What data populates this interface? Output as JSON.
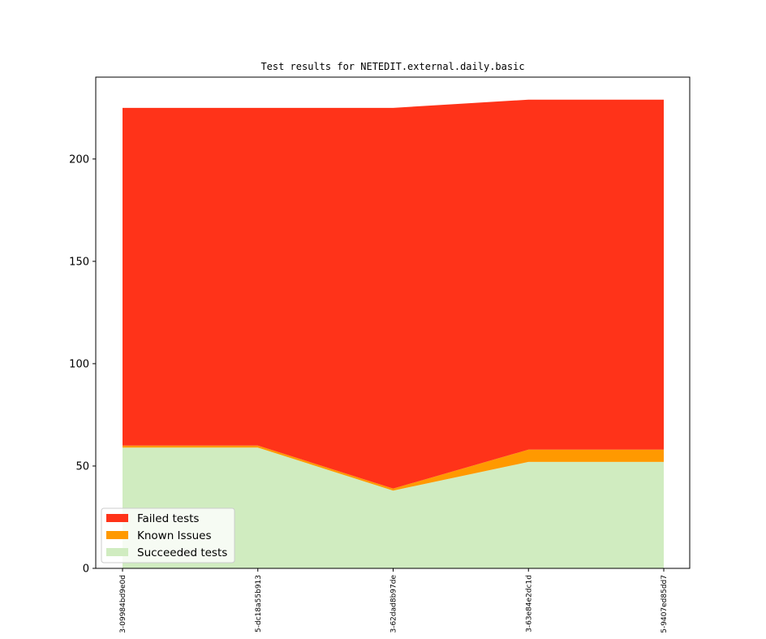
{
  "chart_data": {
    "type": "area",
    "stacked": true,
    "title": "Test results for NETEDIT.external.daily.basic",
    "xlabel": "",
    "ylabel": "",
    "ylim": [
      0,
      240
    ],
    "yticks": [
      0,
      50,
      100,
      150,
      200
    ],
    "categories": [
      "3-09984bd9e0d",
      "5-dc18a55b913",
      "3-62dad8b97de",
      "3-63e84e2dc1d",
      "5-9407ed85dd7"
    ],
    "series": [
      {
        "name": "Succeeded tests",
        "color": "#d0ecc0",
        "values": [
          59,
          59,
          38,
          52,
          52
        ]
      },
      {
        "name": "Known Issues",
        "color": "#ff9900",
        "values": [
          1,
          1,
          1,
          6,
          6
        ]
      },
      {
        "name": "Failed tests",
        "color": "#ff3319",
        "values": [
          165,
          165,
          186,
          171,
          171
        ]
      }
    ],
    "legend": {
      "placement": "lower-left",
      "entries": [
        "Failed tests",
        "Known Issues",
        "Succeeded tests"
      ]
    },
    "grid": false
  }
}
